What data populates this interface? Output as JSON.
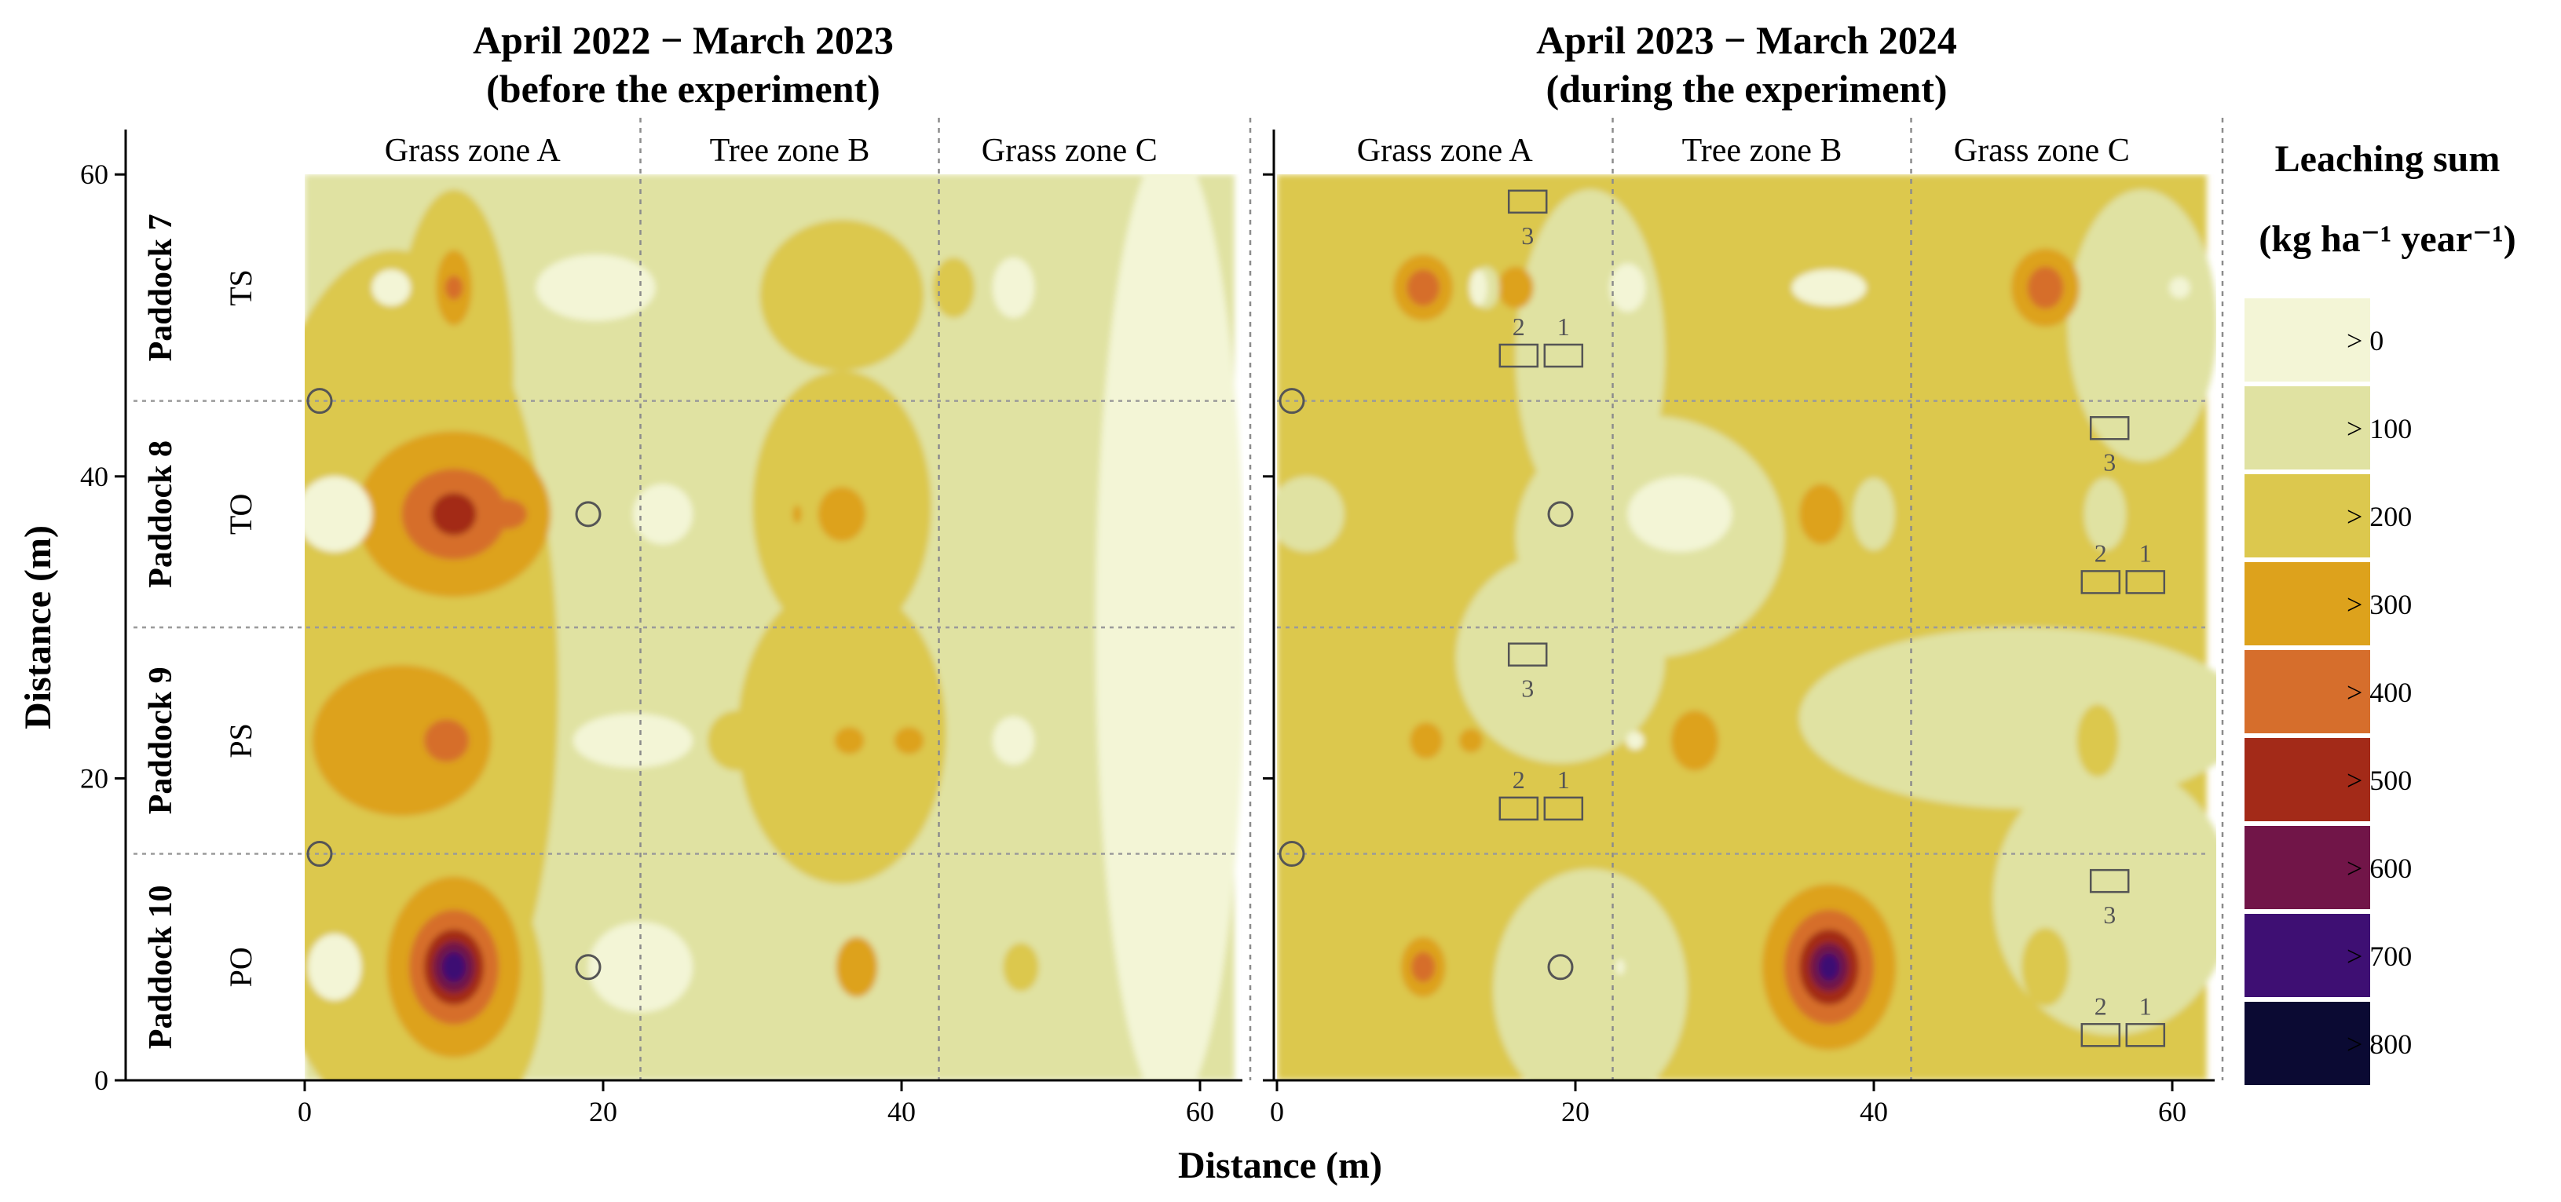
{
  "chart_data": {
    "type": "heatmap",
    "xlabel": "Distance (m)",
    "ylabel": "Distance (m)",
    "xlim": [
      0,
      62
    ],
    "ylim": [
      0,
      60
    ],
    "x_ticks": [
      0,
      20,
      40,
      60
    ],
    "y_ticks": [
      0,
      20,
      40,
      60
    ],
    "zones": [
      {
        "label": "Grass zone A",
        "from": 0,
        "to": 22.5
      },
      {
        "label": "Tree zone B",
        "from": 22.5,
        "to": 42.5
      },
      {
        "label": "Grass zone C",
        "from": 42.5,
        "to": 62
      }
    ],
    "paddocks": [
      {
        "label": "Paddock 7",
        "treatment": "TS",
        "from": 45,
        "to": 60
      },
      {
        "label": "Paddock 8",
        "treatment": "TO",
        "from": 30,
        "to": 45
      },
      {
        "label": "Paddock 9",
        "treatment": "PS",
        "from": 15,
        "to": 30
      },
      {
        "label": "Paddock 10",
        "treatment": "PO",
        "from": 0,
        "to": 15
      }
    ],
    "legend": {
      "title_line1": "Leaching sum",
      "title_line2": "(kg ha⁻¹ year⁻¹)",
      "levels": [
        {
          "label": "> 0",
          "color": "#f3f5d6"
        },
        {
          "label": "> 100",
          "color": "#e0e2a2"
        },
        {
          "label": "> 200",
          "color": "#dcc84e"
        },
        {
          "label": "> 300",
          "color": "#dda21c"
        },
        {
          "label": "> 400",
          "color": "#d66e2c"
        },
        {
          "label": "> 500",
          "color": "#a32a18"
        },
        {
          "label": "> 600",
          "color": "#711548"
        },
        {
          "label": "> 700",
          "color": "#3e0f73"
        },
        {
          "label": "> 800",
          "color": "#0b0a33"
        }
      ]
    },
    "panels": [
      {
        "title_line1": "April 2022 − March 2023",
        "title_line2": "(before the experiment)",
        "background_level": 1,
        "regions": [
          {
            "type": "blob",
            "cx": 58,
            "cy": 30,
            "rx": 5,
            "ry": 32,
            "level": 0
          },
          {
            "type": "blob",
            "cx": 6,
            "cy": 26,
            "rx": 11,
            "ry": 29,
            "level": 2
          },
          {
            "type": "blob",
            "cx": 9,
            "cy": 6,
            "rx": 7,
            "ry": 10,
            "level": 2
          },
          {
            "type": "blob",
            "cx": 36,
            "cy": 38,
            "rx": 6,
            "ry": 9,
            "level": 2
          },
          {
            "type": "blob",
            "cx": 36,
            "cy": 23,
            "rx": 7,
            "ry": 10,
            "level": 2
          },
          {
            "type": "blob",
            "cx": 36,
            "cy": 52,
            "rx": 5.5,
            "ry": 5,
            "level": 2
          },
          {
            "type": "blob",
            "cx": 10,
            "cy": 47,
            "rx": 4,
            "ry": 12,
            "level": 2
          },
          {
            "type": "blob",
            "cx": 10,
            "cy": 37.5,
            "rx": 6.5,
            "ry": 5.5,
            "level": 3
          },
          {
            "type": "blob",
            "cx": 10,
            "cy": 37.5,
            "rx": 3.5,
            "ry": 3,
            "level": 4
          },
          {
            "type": "blob",
            "cx": 10,
            "cy": 37.5,
            "rx": 1.5,
            "ry": 1.4,
            "level": 5
          },
          {
            "type": "blob",
            "cx": 13.5,
            "cy": 37.5,
            "rx": 1.4,
            "ry": 1,
            "level": 4
          },
          {
            "type": "blob",
            "cx": 6.5,
            "cy": 22.5,
            "rx": 6,
            "ry": 5,
            "level": 3
          },
          {
            "type": "blob",
            "cx": 9.5,
            "cy": 22.5,
            "rx": 1.5,
            "ry": 1.4,
            "level": 4
          },
          {
            "type": "blob",
            "cx": 10,
            "cy": 7.5,
            "rx": 4.5,
            "ry": 6,
            "level": 3
          },
          {
            "type": "blob",
            "cx": 10,
            "cy": 7.5,
            "rx": 3,
            "ry": 3.8,
            "level": 4
          },
          {
            "type": "blob",
            "cx": 10,
            "cy": 7.5,
            "rx": 2,
            "ry": 2.5,
            "level": 5
          },
          {
            "type": "blob",
            "cx": 10,
            "cy": 7.5,
            "rx": 1.4,
            "ry": 1.7,
            "level": 6
          },
          {
            "type": "blob",
            "cx": 10,
            "cy": 7.5,
            "rx": 0.8,
            "ry": 1.0,
            "level": 7
          },
          {
            "type": "blob",
            "cx": 10,
            "cy": 52.5,
            "rx": 1.2,
            "ry": 2.5,
            "level": 3
          },
          {
            "type": "blob",
            "cx": 10,
            "cy": 52.5,
            "rx": 0.6,
            "ry": 0.8,
            "level": 4
          },
          {
            "type": "blob",
            "cx": 36,
            "cy": 37.5,
            "rx": 1.6,
            "ry": 1.8,
            "level": 3
          },
          {
            "type": "blob",
            "cx": 33,
            "cy": 37.5,
            "rx": 0.3,
            "ry": 0.6,
            "level": 3
          },
          {
            "type": "blob",
            "cx": 37,
            "cy": 7.5,
            "rx": 1.4,
            "ry": 2,
            "level": 3
          },
          {
            "type": "blob",
            "cx": 36.5,
            "cy": 22.5,
            "rx": 1,
            "ry": 0.9,
            "level": 3
          },
          {
            "type": "blob",
            "cx": 40.5,
            "cy": 22.5,
            "rx": 1,
            "ry": 0.9,
            "level": 3
          },
          {
            "type": "blob",
            "cx": 48,
            "cy": 7.5,
            "rx": 1.2,
            "ry": 1.6,
            "level": 2
          },
          {
            "type": "blob",
            "cx": 43.5,
            "cy": 52.5,
            "rx": 1.4,
            "ry": 2,
            "level": 2
          },
          {
            "type": "blob",
            "cx": 29,
            "cy": 22.5,
            "rx": 2,
            "ry": 2,
            "level": 2
          },
          {
            "type": "blob",
            "cx": 5.8,
            "cy": 52.5,
            "rx": 1.3,
            "ry": 1.2,
            "level": 0
          },
          {
            "type": "blob",
            "cx": 19.5,
            "cy": 52.5,
            "rx": 4,
            "ry": 2.2,
            "level": 0
          },
          {
            "type": "blob",
            "cx": 47.5,
            "cy": 52.5,
            "rx": 1.4,
            "ry": 2,
            "level": 0
          },
          {
            "type": "blob",
            "cx": 2,
            "cy": 37.5,
            "rx": 2.5,
            "ry": 2.5,
            "level": 0
          },
          {
            "type": "blob",
            "cx": 24,
            "cy": 37.5,
            "rx": 2,
            "ry": 2,
            "level": 0
          },
          {
            "type": "blob",
            "cx": 22,
            "cy": 22.5,
            "rx": 4,
            "ry": 1.8,
            "level": 0
          },
          {
            "type": "blob",
            "cx": 47.5,
            "cy": 22.5,
            "rx": 1.4,
            "ry": 1.6,
            "level": 0
          },
          {
            "type": "blob",
            "cx": 2,
            "cy": 7.5,
            "rx": 1.8,
            "ry": 2.2,
            "level": 0
          },
          {
            "type": "blob",
            "cx": 22.5,
            "cy": 7.5,
            "rx": 3.5,
            "ry": 3,
            "level": 0
          }
        ],
        "wells": [
          {
            "x": 1,
            "y": 45
          },
          {
            "x": 19,
            "y": 37.5
          },
          {
            "x": 1,
            "y": 15
          },
          {
            "x": 19,
            "y": 7.5
          }
        ],
        "lysimeters": []
      },
      {
        "title_line1": "April 2023 − March 2024",
        "title_line2": "(during the experiment)",
        "background_level": 2,
        "regions": [
          {
            "type": "blob",
            "cx": 19,
            "cy": 28,
            "rx": 7,
            "ry": 7,
            "level": 1
          },
          {
            "type": "blob",
            "cx": 25,
            "cy": 36,
            "rx": 9,
            "ry": 8,
            "level": 1
          },
          {
            "type": "blob",
            "cx": 21,
            "cy": 48,
            "rx": 5,
            "ry": 11,
            "level": 1
          },
          {
            "type": "blob",
            "cx": 50,
            "cy": 24,
            "rx": 15,
            "ry": 6,
            "level": 1
          },
          {
            "type": "blob",
            "cx": 56,
            "cy": 12,
            "rx": 8,
            "ry": 9,
            "level": 1
          },
          {
            "type": "blob",
            "cx": 58,
            "cy": 50,
            "rx": 5,
            "ry": 9,
            "level": 1
          },
          {
            "type": "blob",
            "cx": 21,
            "cy": 6,
            "rx": 6.5,
            "ry": 8,
            "level": 1
          },
          {
            "type": "blob",
            "cx": 9.8,
            "cy": 52.5,
            "rx": 2,
            "ry": 2.2,
            "level": 3
          },
          {
            "type": "blob",
            "cx": 9.8,
            "cy": 52.5,
            "rx": 1.1,
            "ry": 1.2,
            "level": 4
          },
          {
            "type": "blob",
            "cx": 51.5,
            "cy": 52.5,
            "rx": 2.3,
            "ry": 2.6,
            "level": 3
          },
          {
            "type": "blob",
            "cx": 51.5,
            "cy": 52.5,
            "rx": 1.2,
            "ry": 1.4,
            "level": 4
          },
          {
            "type": "blob",
            "cx": 16,
            "cy": 52.5,
            "rx": 1.2,
            "ry": 1.4,
            "level": 3
          },
          {
            "type": "blob",
            "cx": 37,
            "cy": 7.5,
            "rx": 4.5,
            "ry": 5.5,
            "level": 3
          },
          {
            "type": "blob",
            "cx": 37,
            "cy": 7.5,
            "rx": 3,
            "ry": 3.8,
            "level": 4
          },
          {
            "type": "blob",
            "cx": 37,
            "cy": 7.5,
            "rx": 2,
            "ry": 2.5,
            "level": 5
          },
          {
            "type": "blob",
            "cx": 37,
            "cy": 7.5,
            "rx": 1.3,
            "ry": 1.6,
            "level": 6
          },
          {
            "type": "blob",
            "cx": 37,
            "cy": 7.5,
            "rx": 0.7,
            "ry": 0.9,
            "level": 7
          },
          {
            "type": "blob",
            "cx": 9.8,
            "cy": 7.5,
            "rx": 1.5,
            "ry": 2,
            "level": 3
          },
          {
            "type": "blob",
            "cx": 9.8,
            "cy": 7.5,
            "rx": 0.8,
            "ry": 1,
            "level": 4
          },
          {
            "type": "blob",
            "cx": 36.5,
            "cy": 37.5,
            "rx": 1.5,
            "ry": 2,
            "level": 3
          },
          {
            "type": "blob",
            "cx": 28,
            "cy": 22.5,
            "rx": 1.6,
            "ry": 2,
            "level": 3
          },
          {
            "type": "blob",
            "cx": 10,
            "cy": 22.5,
            "rx": 1.1,
            "ry": 1.2,
            "level": 3
          },
          {
            "type": "blob",
            "cx": 13,
            "cy": 22.5,
            "rx": 0.8,
            "ry": 0.8,
            "level": 3
          },
          {
            "type": "blob",
            "cx": 14,
            "cy": 52.5,
            "rx": 0.9,
            "ry": 1.4,
            "level": 1
          },
          {
            "type": "blob",
            "cx": 13.5,
            "cy": 52.5,
            "rx": 0.6,
            "ry": 1.2,
            "level": 0
          },
          {
            "type": "blob",
            "cx": 23.5,
            "cy": 52.5,
            "rx": 1.2,
            "ry": 1.6,
            "level": 0
          },
          {
            "type": "blob",
            "cx": 37,
            "cy": 52.5,
            "rx": 2.5,
            "ry": 1.2,
            "level": 0
          },
          {
            "type": "blob",
            "cx": 60.5,
            "cy": 52.5,
            "rx": 0.7,
            "ry": 0.7,
            "level": 0
          },
          {
            "type": "blob",
            "cx": 2,
            "cy": 37.5,
            "rx": 2.5,
            "ry": 2.5,
            "level": 1
          },
          {
            "type": "blob",
            "cx": 27,
            "cy": 37.5,
            "rx": 3.5,
            "ry": 2.5,
            "level": 0
          },
          {
            "type": "blob",
            "cx": 40,
            "cy": 37.5,
            "rx": 1.4,
            "ry": 2.4,
            "level": 1
          },
          {
            "type": "blob",
            "cx": 55.5,
            "cy": 37.5,
            "rx": 1.4,
            "ry": 2.4,
            "level": 1
          },
          {
            "type": "blob",
            "cx": 24,
            "cy": 22.5,
            "rx": 0.6,
            "ry": 0.6,
            "level": 0
          },
          {
            "type": "blob",
            "cx": 55,
            "cy": 22.5,
            "rx": 1.4,
            "ry": 2.4,
            "level": 2
          },
          {
            "type": "blob",
            "cx": 51.5,
            "cy": 7.5,
            "rx": 1.6,
            "ry": 2.6,
            "level": 2
          },
          {
            "type": "blob",
            "cx": 23,
            "cy": 7.5,
            "rx": 0.3,
            "ry": 0.5,
            "level": 0
          }
        ],
        "wells": [
          {
            "x": 1,
            "y": 45
          },
          {
            "x": 19,
            "y": 37.5
          },
          {
            "x": 1,
            "y": 15
          },
          {
            "x": 19,
            "y": 7.5
          }
        ],
        "lysimeters": [
          {
            "x": 16.8,
            "y": 58.2,
            "label": "3",
            "label_pos": "below"
          },
          {
            "x": 16.2,
            "y": 48,
            "label": "2",
            "label_pos": "above"
          },
          {
            "x": 19.2,
            "y": 48,
            "label": "1",
            "label_pos": "above"
          },
          {
            "x": 16.8,
            "y": 28.2,
            "label": "3",
            "label_pos": "below"
          },
          {
            "x": 16.2,
            "y": 18,
            "label": "2",
            "label_pos": "above"
          },
          {
            "x": 19.2,
            "y": 18,
            "label": "1",
            "label_pos": "above"
          },
          {
            "x": 55.8,
            "y": 43.2,
            "label": "3",
            "label_pos": "below"
          },
          {
            "x": 55.2,
            "y": 33,
            "label": "2",
            "label_pos": "above"
          },
          {
            "x": 58.2,
            "y": 33,
            "label": "1",
            "label_pos": "above"
          },
          {
            "x": 55.8,
            "y": 13.2,
            "label": "3",
            "label_pos": "below"
          },
          {
            "x": 55.2,
            "y": 3,
            "label": "2",
            "label_pos": "above"
          },
          {
            "x": 58.2,
            "y": 3,
            "label": "1",
            "label_pos": "above"
          }
        ]
      }
    ]
  }
}
